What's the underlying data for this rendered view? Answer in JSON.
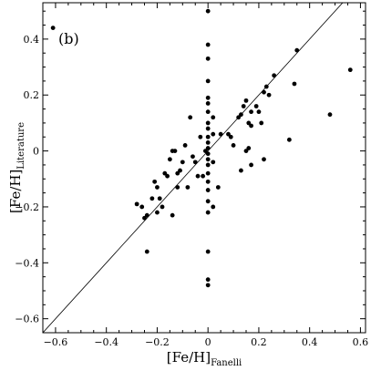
{
  "chart_data": {
    "type": "scatter",
    "panel_label": "(b)",
    "xlabel": {
      "main": "[Fe/H]",
      "sub": "Fanelli"
    },
    "ylabel": {
      "main": "[Fe/H]",
      "sub": "Literature"
    },
    "xlim": [
      -0.65,
      0.62
    ],
    "ylim": [
      -0.65,
      0.53
    ],
    "xticks": [
      -0.6,
      -0.4,
      -0.2,
      0.0,
      0.2,
      0.4,
      0.6
    ],
    "yticks": [
      -0.6,
      -0.4,
      -0.2,
      0.0,
      0.2,
      0.4
    ],
    "xtick_labels": [
      "−0.6",
      "−0.4",
      "−0.2",
      "0",
      "0.2",
      "0.4",
      "0.6"
    ],
    "ytick_labels": [
      "−0.6",
      "−0.4",
      "−0.2",
      "0",
      "0.2",
      "0.4"
    ],
    "reference_line": "one-to-one",
    "grid": false,
    "points": [
      [
        -0.61,
        0.44
      ],
      [
        0.0,
        0.5
      ],
      [
        0.0,
        0.38
      ],
      [
        0.0,
        0.33
      ],
      [
        0.0,
        0.25
      ],
      [
        0.0,
        0.19
      ],
      [
        0.0,
        0.17
      ],
      [
        0.0,
        0.14
      ],
      [
        0.0,
        0.1
      ],
      [
        0.0,
        0.08
      ],
      [
        0.0,
        0.05
      ],
      [
        0.0,
        0.03
      ],
      [
        0.0,
        0.01
      ],
      [
        0.0,
        -0.01
      ],
      [
        0.0,
        -0.03
      ],
      [
        0.0,
        -0.05
      ],
      [
        0.0,
        -0.08
      ],
      [
        0.0,
        -0.11
      ],
      [
        0.0,
        -0.14
      ],
      [
        0.0,
        -0.18
      ],
      [
        0.0,
        -0.22
      ],
      [
        0.0,
        -0.36
      ],
      [
        0.0,
        -0.46
      ],
      [
        0.0,
        -0.48
      ],
      [
        0.02,
        0.12
      ],
      [
        0.02,
        0.06
      ],
      [
        0.02,
        -0.04
      ],
      [
        0.02,
        -0.2
      ],
      [
        0.04,
        -0.13
      ],
      [
        0.05,
        0.06
      ],
      [
        0.08,
        0.06
      ],
      [
        0.09,
        0.05
      ],
      [
        0.1,
        0.02
      ],
      [
        0.12,
        0.12
      ],
      [
        0.13,
        0.13
      ],
      [
        0.14,
        0.16
      ],
      [
        0.15,
        0.18
      ],
      [
        0.16,
        0.1
      ],
      [
        0.17,
        0.14
      ],
      [
        0.17,
        0.09
      ],
      [
        0.19,
        0.16
      ],
      [
        0.2,
        0.14
      ],
      [
        0.21,
        0.1
      ],
      [
        0.22,
        0.21
      ],
      [
        0.23,
        0.23
      ],
      [
        0.24,
        0.2
      ],
      [
        0.26,
        0.27
      ],
      [
        0.13,
        -0.07
      ],
      [
        0.15,
        0.0
      ],
      [
        0.17,
        -0.05
      ],
      [
        0.22,
        -0.03
      ],
      [
        0.16,
        0.01
      ],
      [
        0.32,
        0.04
      ],
      [
        0.34,
        0.24
      ],
      [
        0.35,
        0.36
      ],
      [
        0.48,
        0.13
      ],
      [
        0.56,
        0.29
      ],
      [
        -0.03,
        0.05
      ],
      [
        -0.04,
        -0.09
      ],
      [
        -0.05,
        -0.04
      ],
      [
        -0.06,
        -0.02
      ],
      [
        -0.07,
        0.12
      ],
      [
        -0.08,
        -0.13
      ],
      [
        -0.09,
        0.02
      ],
      [
        -0.1,
        -0.04
      ],
      [
        -0.11,
        -0.07
      ],
      [
        -0.12,
        -0.08
      ],
      [
        -0.12,
        -0.13
      ],
      [
        -0.13,
        0.0
      ],
      [
        -0.14,
        0.0
      ],
      [
        -0.14,
        -0.23
      ],
      [
        -0.15,
        -0.03
      ],
      [
        -0.16,
        -0.09
      ],
      [
        -0.17,
        -0.08
      ],
      [
        -0.18,
        -0.2
      ],
      [
        -0.19,
        -0.17
      ],
      [
        -0.2,
        -0.22
      ],
      [
        -0.2,
        -0.13
      ],
      [
        -0.21,
        -0.11
      ],
      [
        -0.22,
        -0.17
      ],
      [
        -0.24,
        -0.23
      ],
      [
        -0.25,
        -0.24
      ],
      [
        -0.24,
        -0.36
      ],
      [
        -0.26,
        -0.2
      ],
      [
        -0.28,
        -0.19
      ],
      [
        -0.02,
        -0.09
      ],
      [
        -0.01,
        0.0
      ]
    ]
  }
}
